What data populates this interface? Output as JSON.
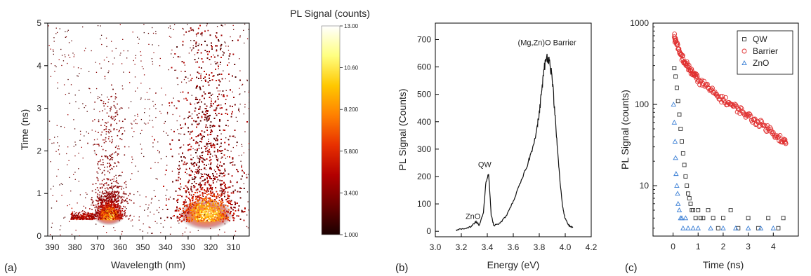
{
  "chart_data": [
    {
      "panel_label": "(a)",
      "type": "heatmap",
      "xlabel": "Wavelength (nm)",
      "ylabel": "Time (ns)",
      "xlim": [
        392,
        303
      ],
      "ylim": [
        0,
        5
      ],
      "x_ticks": [
        "390",
        "380",
        "370",
        "360",
        "350",
        "340",
        "330",
        "320",
        "310"
      ],
      "y_ticks": [
        "0",
        "1",
        "2",
        "3",
        "4",
        "5"
      ],
      "colorbar": {
        "title": "PL Signal (counts)",
        "range": [
          1.0,
          13.0
        ],
        "ticks": [
          "13.00",
          "10.60",
          "8.200",
          "5.800",
          "3.400",
          "1.000"
        ],
        "colors": [
          "#1a0000",
          "#6b0000",
          "#b30000",
          "#e83000",
          "#ff8000",
          "#ffc800",
          "#ffff80",
          "#ffffff"
        ]
      },
      "features": [
        {
          "center_wavelength": 365,
          "peak_time": 0.48
        },
        {
          "center_wavelength": 322,
          "peak_time": 0.5
        }
      ]
    },
    {
      "panel_label": "(b)",
      "type": "line",
      "xlabel": "Energy (eV)",
      "ylabel": "PL Signal (Counts)",
      "xlim": [
        3.0,
        4.2
      ],
      "ylim": [
        -20,
        760
      ],
      "x_ticks": [
        "3.0",
        "3.2",
        "3.4",
        "3.6",
        "3.8",
        "4.0",
        "4.2"
      ],
      "y_ticks": [
        "0",
        "100",
        "200",
        "300",
        "400",
        "500",
        "600",
        "700"
      ],
      "annotations": [
        {
          "text": "ZnO",
          "x": 3.29,
          "y": 45
        },
        {
          "text": "QW",
          "x": 3.38,
          "y": 235
        },
        {
          "text": "(Mg,Zn)O Barrier",
          "x": 3.86,
          "y": 680
        }
      ],
      "x": [
        3.16,
        3.2,
        3.24,
        3.28,
        3.31,
        3.34,
        3.37,
        3.39,
        3.41,
        3.43,
        3.45,
        3.5,
        3.55,
        3.6,
        3.65,
        3.7,
        3.74,
        3.78,
        3.8,
        3.82,
        3.84,
        3.86,
        3.88,
        3.9,
        3.92,
        3.94,
        3.96,
        3.98,
        4.0,
        4.03,
        4.06
      ],
      "y": [
        5,
        8,
        12,
        18,
        35,
        22,
        70,
        180,
        210,
        60,
        20,
        30,
        60,
        110,
        170,
        230,
        290,
        370,
        430,
        520,
        600,
        640,
        620,
        560,
        430,
        300,
        180,
        90,
        45,
        20,
        15
      ]
    },
    {
      "panel_label": "(c)",
      "type": "scatter",
      "xlabel": "Time (ns)",
      "ylabel": "PL Signal (counts)",
      "xlim": [
        -0.8,
        5.0
      ],
      "ylim": [
        2.4,
        1000
      ],
      "yscale": "log",
      "x_ticks": [
        "0",
        "1",
        "2",
        "3",
        "4"
      ],
      "y_ticks": [
        "10",
        "100",
        "1000"
      ],
      "legend_position": "top-right",
      "series": [
        {
          "name": "QW",
          "marker": "square",
          "color": "#333333",
          "x": [
            0.05,
            0.1,
            0.15,
            0.2,
            0.25,
            0.3,
            0.35,
            0.4,
            0.45,
            0.5,
            0.55,
            0.6,
            0.65,
            0.7,
            0.75,
            0.8,
            0.9,
            1.0,
            1.1,
            1.2,
            1.4,
            1.6,
            1.8,
            2.0,
            2.3,
            2.6,
            3.0,
            3.4,
            3.8,
            4.2,
            4.4
          ],
          "y": [
            280,
            220,
            160,
            110,
            75,
            50,
            35,
            25,
            18,
            13,
            10,
            8,
            7,
            6,
            5,
            5,
            4,
            5,
            4,
            4,
            5,
            4,
            3,
            4,
            5,
            3,
            4,
            3,
            4,
            3,
            4
          ]
        },
        {
          "name": "Barrier",
          "marker": "circle",
          "color": "#e03030",
          "x": [
            0.05,
            0.1,
            0.2,
            0.3,
            0.4,
            0.5,
            0.6,
            0.7,
            0.8,
            0.9,
            1.0,
            1.2,
            1.4,
            1.6,
            1.8,
            2.0,
            2.2,
            2.4,
            2.6,
            2.8,
            3.0,
            3.2,
            3.4,
            3.6,
            3.8,
            4.0,
            4.2,
            4.4,
            4.5
          ],
          "y": [
            680,
            600,
            480,
            410,
            360,
            320,
            290,
            260,
            240,
            220,
            200,
            180,
            160,
            140,
            125,
            115,
            105,
            95,
            88,
            80,
            72,
            65,
            60,
            55,
            50,
            45,
            40,
            36,
            33
          ]
        },
        {
          "name": "ZnO",
          "marker": "triangle",
          "color": "#3a7fd5",
          "x": [
            0.02,
            0.05,
            0.08,
            0.1,
            0.12,
            0.15,
            0.18,
            0.2,
            0.25,
            0.3,
            0.35,
            0.4,
            0.5,
            0.6,
            0.8,
            1.0,
            1.5,
            2.0,
            2.5,
            3.0,
            3.5,
            4.0
          ],
          "y": [
            100,
            60,
            35,
            22,
            14,
            10,
            8,
            6,
            5,
            4,
            4,
            3,
            4,
            3,
            3,
            3,
            3,
            3,
            3,
            3,
            3,
            3
          ]
        }
      ]
    }
  ]
}
